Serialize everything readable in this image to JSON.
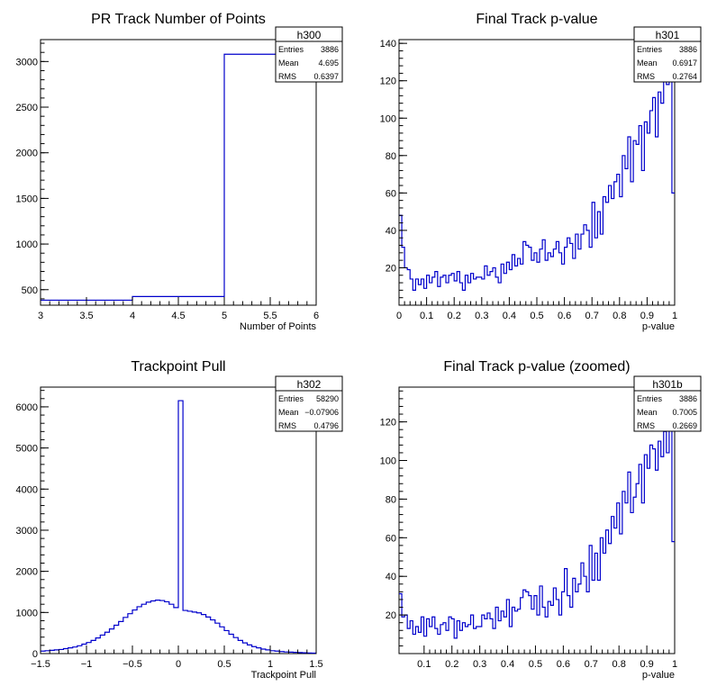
{
  "chart_data": [
    {
      "id": "h300",
      "type": "histogram",
      "title": "PR Track Number of Points",
      "xlabel": "Number of Points",
      "ylabel": "",
      "xlim": [
        3,
        6
      ],
      "ylim": [
        330,
        3240
      ],
      "xticks": [
        "3",
        "3.5",
        "4",
        "4.5",
        "5",
        "5.5",
        "6"
      ],
      "xtick_values": [
        3,
        3.5,
        4,
        4.5,
        5,
        5.5,
        6
      ],
      "yticks": [
        "500",
        "1000",
        "1500",
        "2000",
        "2500",
        "3000"
      ],
      "ytick_values": [
        500,
        1000,
        1500,
        2000,
        2500,
        3000
      ],
      "bin_edges": [
        3,
        4,
        5,
        6
      ],
      "values": [
        385,
        425,
        3080
      ],
      "color": "#0000cc",
      "stats": {
        "name": "h300",
        "rows": [
          [
            "Entries",
            "3886"
          ],
          [
            "Mean",
            "4.695"
          ],
          [
            "RMS",
            "0.6397"
          ]
        ]
      }
    },
    {
      "id": "h301",
      "type": "histogram",
      "title": "Final Track p-value",
      "xlabel": "p-value",
      "ylabel": "",
      "xlim": [
        0,
        1
      ],
      "ylim": [
        0,
        142
      ],
      "xticks": [
        "0",
        "0.1",
        "0.2",
        "0.3",
        "0.4",
        "0.5",
        "0.6",
        "0.7",
        "0.8",
        "0.9",
        "1"
      ],
      "xtick_values": [
        0,
        0.1,
        0.2,
        0.3,
        0.4,
        0.5,
        0.6,
        0.7,
        0.8,
        0.9,
        1
      ],
      "yticks": [
        "20",
        "40",
        "60",
        "80",
        "100",
        "120",
        "140"
      ],
      "ytick_values": [
        20,
        40,
        60,
        80,
        100,
        120,
        140
      ],
      "bin_range": [
        0,
        1
      ],
      "values": [
        48,
        31,
        20,
        19,
        14,
        8,
        14,
        11,
        14,
        9,
        16,
        12,
        15,
        18,
        10,
        15,
        16,
        12,
        16,
        17,
        13,
        18,
        12,
        8,
        16,
        12,
        17,
        14,
        15,
        15,
        14,
        21,
        16,
        18,
        20,
        15,
        12,
        22,
        17,
        23,
        19,
        27,
        21,
        25,
        22,
        34,
        32,
        31,
        24,
        28,
        23,
        30,
        35,
        24,
        28,
        26,
        30,
        34,
        28,
        22,
        31,
        36,
        33,
        25,
        38,
        30,
        38,
        43,
        40,
        31,
        55,
        36,
        50,
        38,
        58,
        55,
        64,
        57,
        66,
        70,
        58,
        80,
        73,
        90,
        66,
        88,
        86,
        96,
        72,
        98,
        92,
        104,
        111,
        90,
        114,
        108,
        125,
        118,
        120,
        60
      ],
      "color": "#0000cc",
      "stats": {
        "name": "h301",
        "rows": [
          [
            "Entries",
            "3886"
          ],
          [
            "Mean",
            "0.6917"
          ],
          [
            "RMS",
            "0.2764"
          ]
        ]
      }
    },
    {
      "id": "h302",
      "type": "histogram",
      "title": "Trackpoint Pull",
      "xlabel": "Trackpoint Pull",
      "ylabel": "",
      "xlim": [
        -1.5,
        1.5
      ],
      "ylim": [
        0,
        6480
      ],
      "xticks": [
        "−1.5",
        "−1",
        "−0.5",
        "0",
        "0.5",
        "1",
        "1.5"
      ],
      "xtick_values": [
        -1.5,
        -1,
        -0.5,
        0,
        0.5,
        1,
        1.5
      ],
      "yticks": [
        "0",
        "1000",
        "2000",
        "3000",
        "4000",
        "5000",
        "6000"
      ],
      "ytick_values": [
        0,
        1000,
        2000,
        3000,
        4000,
        5000,
        6000
      ],
      "bin_range": [
        -1.5,
        1.5
      ],
      "values": [
        60,
        70,
        80,
        90,
        100,
        120,
        140,
        160,
        190,
        230,
        270,
        320,
        380,
        450,
        520,
        600,
        690,
        780,
        880,
        970,
        1060,
        1140,
        1200,
        1250,
        1280,
        1300,
        1290,
        1260,
        1200,
        1120,
        6150,
        1050,
        1030,
        1010,
        990,
        950,
        890,
        820,
        740,
        650,
        560,
        470,
        390,
        320,
        260,
        210,
        170,
        140,
        110,
        90,
        70,
        60,
        50,
        40,
        35,
        30,
        25,
        20,
        15,
        12
      ],
      "color": "#0000cc",
      "stats": {
        "name": "h302",
        "rows": [
          [
            "Entries",
            "58290"
          ],
          [
            "Mean",
            "−0.07906"
          ],
          [
            "RMS",
            "0.4796"
          ]
        ]
      }
    },
    {
      "id": "h301b",
      "type": "histogram",
      "title": "Final Track p-value (zoomed)",
      "xlabel": "p-value",
      "ylabel": "",
      "xlim": [
        0.01,
        1
      ],
      "ylim": [
        0,
        138
      ],
      "xticks": [
        "0.1",
        "0.2",
        "0.3",
        "0.4",
        "0.5",
        "0.6",
        "0.7",
        "0.8",
        "0.9",
        "1"
      ],
      "xtick_values": [
        0.1,
        0.2,
        0.3,
        0.4,
        0.5,
        0.6,
        0.7,
        0.8,
        0.9,
        1
      ],
      "yticks": [
        "20",
        "40",
        "60",
        "80",
        "100",
        "120"
      ],
      "ytick_values": [
        20,
        40,
        60,
        80,
        100,
        120
      ],
      "bin_range": [
        0.01,
        1
      ],
      "values": [
        31,
        19,
        20,
        13,
        17,
        10,
        14,
        11,
        19,
        9,
        18,
        14,
        19,
        13,
        10,
        15,
        16,
        12,
        19,
        18,
        8,
        17,
        12,
        16,
        14,
        15,
        20,
        13,
        14,
        14,
        20,
        18,
        21,
        18,
        13,
        24,
        17,
        22,
        19,
        28,
        14,
        24,
        22,
        23,
        29,
        33,
        32,
        30,
        23,
        30,
        20,
        35,
        24,
        19,
        27,
        25,
        34,
        28,
        20,
        32,
        44,
        30,
        24,
        39,
        32,
        36,
        47,
        40,
        32,
        56,
        38,
        52,
        38,
        60,
        52,
        64,
        57,
        71,
        65,
        78,
        62,
        84,
        78,
        94,
        73,
        81,
        88,
        98,
        78,
        103,
        96,
        108,
        106,
        95,
        110,
        102,
        115,
        104,
        119,
        58
      ],
      "color": "#0000cc",
      "stats": {
        "name": "h301b",
        "rows": [
          [
            "Entries",
            "3886"
          ],
          [
            "Mean",
            "0.7005"
          ],
          [
            "RMS",
            "0.2669"
          ]
        ]
      }
    }
  ]
}
